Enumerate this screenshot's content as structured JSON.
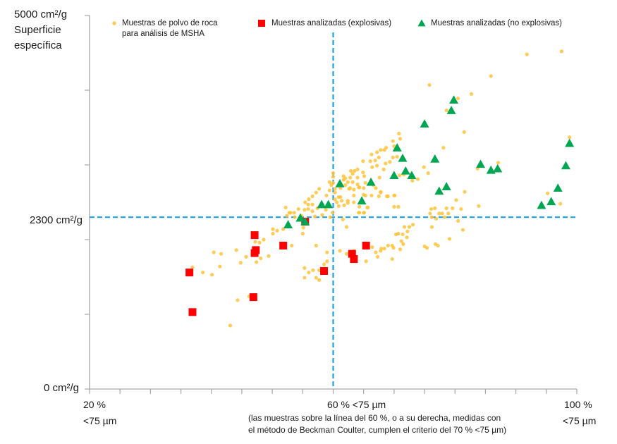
{
  "chart_data": {
    "type": "scatter",
    "title": "",
    "ylabel": [
      "Superficie",
      "específica"
    ],
    "y_ticks": {
      "top": "5000 cm²/g",
      "mid": "2300 cm²/g",
      "bottom": "0 cm²/g"
    },
    "x_ticks": {
      "left": [
        "20 %",
        "<75 µm"
      ],
      "mid": "60 % <75 µm",
      "right": [
        "100 %",
        "<75 µm"
      ]
    },
    "x_note": [
      "(las muestras sobre la línea del 60 %, o a su derecha, medidas con",
      "el método de Beckman Coulter, cumplen el criterio del 70 % <75 µm)"
    ],
    "xlim": [
      20,
      100
    ],
    "ylim": [
      0,
      5000
    ],
    "x_tick_step": 5,
    "y_tick_step": 1000,
    "grid": false,
    "legend_position": "top",
    "reference_lines": {
      "x": 60,
      "y": 2300,
      "color": "#1AA3E8",
      "style": "dashed"
    },
    "series": [
      {
        "name": "Muestras de polvo de roca para análisis de MSHA",
        "legend_lines": [
          "Muestras de polvo de roca",
          "para análisis de MSHA"
        ],
        "marker": "circle",
        "color": "#FFC33A",
        "points": [
          [
            36.9,
            1630
          ],
          [
            38.6,
            1560
          ],
          [
            40.1,
            1530
          ],
          [
            40.4,
            1830
          ],
          [
            41.6,
            1810
          ],
          [
            41.4,
            1640
          ],
          [
            44.1,
            1860
          ],
          [
            44.8,
            1690
          ],
          [
            45.7,
            1770
          ],
          [
            44.3,
            1190
          ],
          [
            43.1,
            850
          ],
          [
            46.2,
            1240
          ],
          [
            47.4,
            1700
          ],
          [
            48.1,
            1750
          ],
          [
            49.4,
            1780
          ],
          [
            47.2,
            1970
          ],
          [
            47.9,
            1960
          ],
          [
            48.6,
            2000
          ],
          [
            50.1,
            2140
          ],
          [
            50.1,
            2080
          ],
          [
            50.8,
            2120
          ],
          [
            51.8,
            2140
          ],
          [
            53.2,
            1920
          ],
          [
            52.2,
            2430
          ],
          [
            52.8,
            2360
          ],
          [
            55.1,
            2160
          ],
          [
            55.0,
            2080
          ],
          [
            57.2,
            1920
          ],
          [
            55.3,
            1620
          ],
          [
            56.0,
            1560
          ],
          [
            56.7,
            1590
          ],
          [
            55.3,
            1490
          ],
          [
            57.2,
            1490
          ],
          [
            57.7,
            1460
          ],
          [
            59.0,
            1830
          ],
          [
            59.0,
            1710
          ],
          [
            58.5,
            1670
          ],
          [
            57.7,
            1590
          ],
          [
            61.1,
            1850
          ],
          [
            62.2,
            1810
          ],
          [
            63.4,
            1850
          ],
          [
            66.4,
            1900
          ],
          [
            67.0,
            1830
          ],
          [
            67.3,
            1770
          ],
          [
            67.9,
            1880
          ],
          [
            68.4,
            1880
          ],
          [
            65.4,
            1710
          ],
          [
            62.2,
            2170
          ],
          [
            61.6,
            2270
          ],
          [
            64.2,
            2360
          ],
          [
            65.0,
            2360
          ],
          [
            65.6,
            2430
          ],
          [
            67.8,
            1850
          ],
          [
            69.0,
            1920
          ],
          [
            69.7,
            1920
          ],
          [
            69.9,
            1890
          ],
          [
            69.7,
            1740
          ],
          [
            71.0,
            1870
          ],
          [
            71.5,
            1940
          ],
          [
            71.2,
            1980
          ],
          [
            70.3,
            2070
          ],
          [
            70.7,
            2080
          ],
          [
            71.4,
            2070
          ],
          [
            72.1,
            2030
          ],
          [
            72.2,
            2110
          ],
          [
            71.7,
            2170
          ],
          [
            72.5,
            2170
          ],
          [
            73.1,
            2200
          ],
          [
            75.0,
            1910
          ],
          [
            75.4,
            1890
          ],
          [
            76.8,
            1940
          ],
          [
            77.2,
            1920
          ],
          [
            79.1,
            2010
          ],
          [
            81.3,
            2130
          ],
          [
            76.2,
            2170
          ],
          [
            76.1,
            2410
          ],
          [
            75.9,
            2350
          ],
          [
            76.7,
            2420
          ],
          [
            76.2,
            2300
          ],
          [
            76.9,
            2280
          ],
          [
            77.4,
            2350
          ],
          [
            77.9,
            2350
          ],
          [
            78.6,
            2420
          ],
          [
            78.9,
            2350
          ],
          [
            79.6,
            2420
          ],
          [
            80.2,
            2530
          ],
          [
            81.0,
            2410
          ],
          [
            81.6,
            2640
          ],
          [
            78.3,
            2300
          ],
          [
            80.5,
            2250
          ],
          [
            70.0,
            2440
          ],
          [
            69.0,
            2580
          ],
          [
            70.0,
            2590
          ],
          [
            67.8,
            2630
          ],
          [
            66.3,
            2590
          ],
          [
            65.0,
            2600
          ],
          [
            63.4,
            2590
          ],
          [
            67.0,
            2690
          ],
          [
            64.2,
            2700
          ],
          [
            62.8,
            2690
          ],
          [
            61.2,
            2570
          ],
          [
            61.8,
            2460
          ],
          [
            62.4,
            2520
          ],
          [
            60.9,
            2450
          ],
          [
            70.8,
            3420
          ],
          [
            71.0,
            3350
          ],
          [
            69.8,
            3320
          ],
          [
            70.0,
            3250
          ],
          [
            68.7,
            3230
          ],
          [
            68.4,
            3200
          ],
          [
            67.8,
            3200
          ],
          [
            67.2,
            3170
          ],
          [
            66.3,
            3140
          ],
          [
            67.5,
            3100
          ],
          [
            66.9,
            3060
          ],
          [
            66.1,
            3050
          ],
          [
            64.9,
            3050
          ],
          [
            66.4,
            2970
          ],
          [
            67.2,
            2990
          ],
          [
            68.6,
            3020
          ],
          [
            69.3,
            3040
          ],
          [
            69.8,
            3100
          ],
          [
            70.5,
            3110
          ],
          [
            68.3,
            2940
          ],
          [
            67.6,
            2830
          ],
          [
            70.9,
            2860
          ],
          [
            71.6,
            2870
          ],
          [
            73.0,
            2790
          ],
          [
            73.9,
            2810
          ],
          [
            64.0,
            2940
          ],
          [
            63.5,
            2920
          ],
          [
            62.9,
            2920
          ],
          [
            63.2,
            2880
          ],
          [
            64.0,
            2830
          ],
          [
            62.8,
            2830
          ],
          [
            62.0,
            2820
          ],
          [
            61.7,
            2800
          ],
          [
            62.4,
            2770
          ],
          [
            63.2,
            2770
          ],
          [
            65.1,
            2850
          ],
          [
            64.9,
            2900
          ],
          [
            61.7,
            2850
          ],
          [
            60.0,
            2840
          ],
          [
            59.4,
            2770
          ],
          [
            59.7,
            2730
          ],
          [
            60.3,
            2680
          ],
          [
            61.2,
            2690
          ],
          [
            62.0,
            2730
          ],
          [
            62.6,
            2680
          ],
          [
            63.4,
            2670
          ],
          [
            64.3,
            2700
          ],
          [
            64.0,
            2740
          ],
          [
            65.3,
            2760
          ],
          [
            66.6,
            2730
          ],
          [
            67.8,
            2640
          ],
          [
            65.3,
            2590
          ],
          [
            63.4,
            2500
          ],
          [
            62.4,
            2490
          ],
          [
            61.4,
            2520
          ],
          [
            60.9,
            2570
          ],
          [
            60.3,
            2630
          ],
          [
            59.4,
            2660
          ],
          [
            58.9,
            2590
          ],
          [
            57.7,
            2680
          ],
          [
            57.2,
            2630
          ],
          [
            56.6,
            2580
          ],
          [
            56.0,
            2540
          ],
          [
            55.4,
            2500
          ],
          [
            55.9,
            2470
          ],
          [
            56.6,
            2470
          ],
          [
            57.4,
            2420
          ],
          [
            56.6,
            2380
          ],
          [
            55.9,
            2410
          ],
          [
            55.3,
            2400
          ],
          [
            54.3,
            2410
          ],
          [
            53.6,
            2360
          ],
          [
            53.0,
            2360
          ],
          [
            52.4,
            2320
          ],
          [
            53.7,
            2300
          ],
          [
            54.8,
            2320
          ],
          [
            57.0,
            2310
          ],
          [
            59.5,
            2300
          ],
          [
            59.9,
            2360
          ],
          [
            58.8,
            2400
          ],
          [
            58.2,
            2330
          ],
          [
            60.3,
            2540
          ],
          [
            60.6,
            2500
          ],
          [
            64.3,
            2360
          ],
          [
            65.1,
            2360
          ],
          [
            64.3,
            2440
          ],
          [
            65.7,
            2430
          ],
          [
            70.1,
            2590
          ],
          [
            70.7,
            2440
          ],
          [
            68.8,
            2580
          ],
          [
            67.5,
            2580
          ],
          [
            65.0,
            2690
          ],
          [
            60.0,
            2890
          ],
          [
            60.0,
            2760
          ],
          [
            91.8,
            4480
          ],
          [
            97.5,
            4520
          ],
          [
            85.9,
            4190
          ],
          [
            75.8,
            4070
          ],
          [
            82.7,
            3950
          ],
          [
            80.5,
            3890
          ],
          [
            78.6,
            3730
          ],
          [
            81.5,
            3440
          ],
          [
            98.8,
            3370
          ],
          [
            78.1,
            3230
          ],
          [
            74.9,
            2970
          ],
          [
            75.6,
            2890
          ],
          [
            87.1,
            3030
          ],
          [
            83.7,
            2950
          ],
          [
            95.2,
            2620
          ],
          [
            97.3,
            2480
          ],
          [
            83.9,
            2450
          ]
        ]
      },
      {
        "name": "Muestras analizadas (explosivas)",
        "marker": "square",
        "color": "#FF0000",
        "points": [
          [
            36.4,
            1560
          ],
          [
            36.9,
            1030
          ],
          [
            47.1,
            2060
          ],
          [
            47.3,
            1860
          ],
          [
            47.1,
            1820
          ],
          [
            51.8,
            1920
          ],
          [
            46.9,
            1230
          ],
          [
            58.5,
            1580
          ],
          [
            55.4,
            2240
          ],
          [
            65.4,
            1920
          ],
          [
            63.1,
            1810
          ],
          [
            63.4,
            1740
          ]
        ]
      },
      {
        "name": "Muestras analizadas (no explosivas)",
        "marker": "triangle",
        "color": "#00A651",
        "points": [
          [
            52.6,
            2200
          ],
          [
            54.6,
            2290
          ],
          [
            55.4,
            2240
          ],
          [
            58.1,
            2470
          ],
          [
            59.2,
            2470
          ],
          [
            61.1,
            2750
          ],
          [
            66.2,
            2770
          ],
          [
            64.7,
            2520
          ],
          [
            70.5,
            3230
          ],
          [
            71.4,
            3090
          ],
          [
            71.9,
            2920
          ],
          [
            70.0,
            2860
          ],
          [
            72.9,
            2860
          ],
          [
            75.0,
            3550
          ],
          [
            76.7,
            3080
          ],
          [
            77.4,
            2650
          ],
          [
            78.6,
            2710
          ],
          [
            79.4,
            3730
          ],
          [
            79.8,
            3870
          ],
          [
            84.2,
            3010
          ],
          [
            85.9,
            2930
          ],
          [
            87.0,
            2950
          ],
          [
            94.2,
            2460
          ],
          [
            95.8,
            2510
          ],
          [
            96.9,
            2690
          ],
          [
            98.2,
            2990
          ],
          [
            98.8,
            3290
          ]
        ]
      }
    ]
  }
}
